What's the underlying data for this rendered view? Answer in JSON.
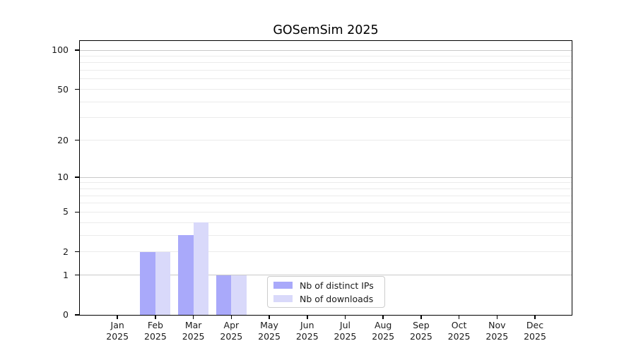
{
  "chart_data": {
    "type": "bar",
    "title": "GOSemSim 2025",
    "year_label": "2025",
    "categories": [
      "Jan",
      "Feb",
      "Mar",
      "Apr",
      "May",
      "Jun",
      "Jul",
      "Aug",
      "Sep",
      "Oct",
      "Nov",
      "Dec"
    ],
    "series": [
      {
        "name": "Nb of distinct IPs",
        "color": "#a9a9fa",
        "values": [
          0,
          2,
          3,
          1,
          0,
          0,
          0,
          0,
          0,
          0,
          0,
          0
        ]
      },
      {
        "name": "Nb of downloads",
        "color": "#d9d9fa",
        "values": [
          0,
          2,
          4,
          1,
          0,
          0,
          0,
          0,
          0,
          0,
          0,
          0
        ]
      }
    ],
    "y_axis": {
      "scale": "log10(value+1)",
      "range": [
        0,
        100
      ],
      "ticks": [
        0,
        1,
        2,
        5,
        10,
        20,
        50,
        100
      ],
      "major_gridlines": [
        1,
        10,
        100
      ],
      "minor_gridlines": [
        2,
        3,
        4,
        5,
        6,
        7,
        8,
        9,
        20,
        30,
        40,
        50,
        60,
        70,
        80,
        90
      ]
    },
    "legend": {
      "position": "bottom-center"
    },
    "colors": {
      "axis": "#000000",
      "major_grid": "#c9c9c9",
      "minor_grid": "#ebebeb",
      "text": "#1a1a1a"
    },
    "grid": true
  }
}
